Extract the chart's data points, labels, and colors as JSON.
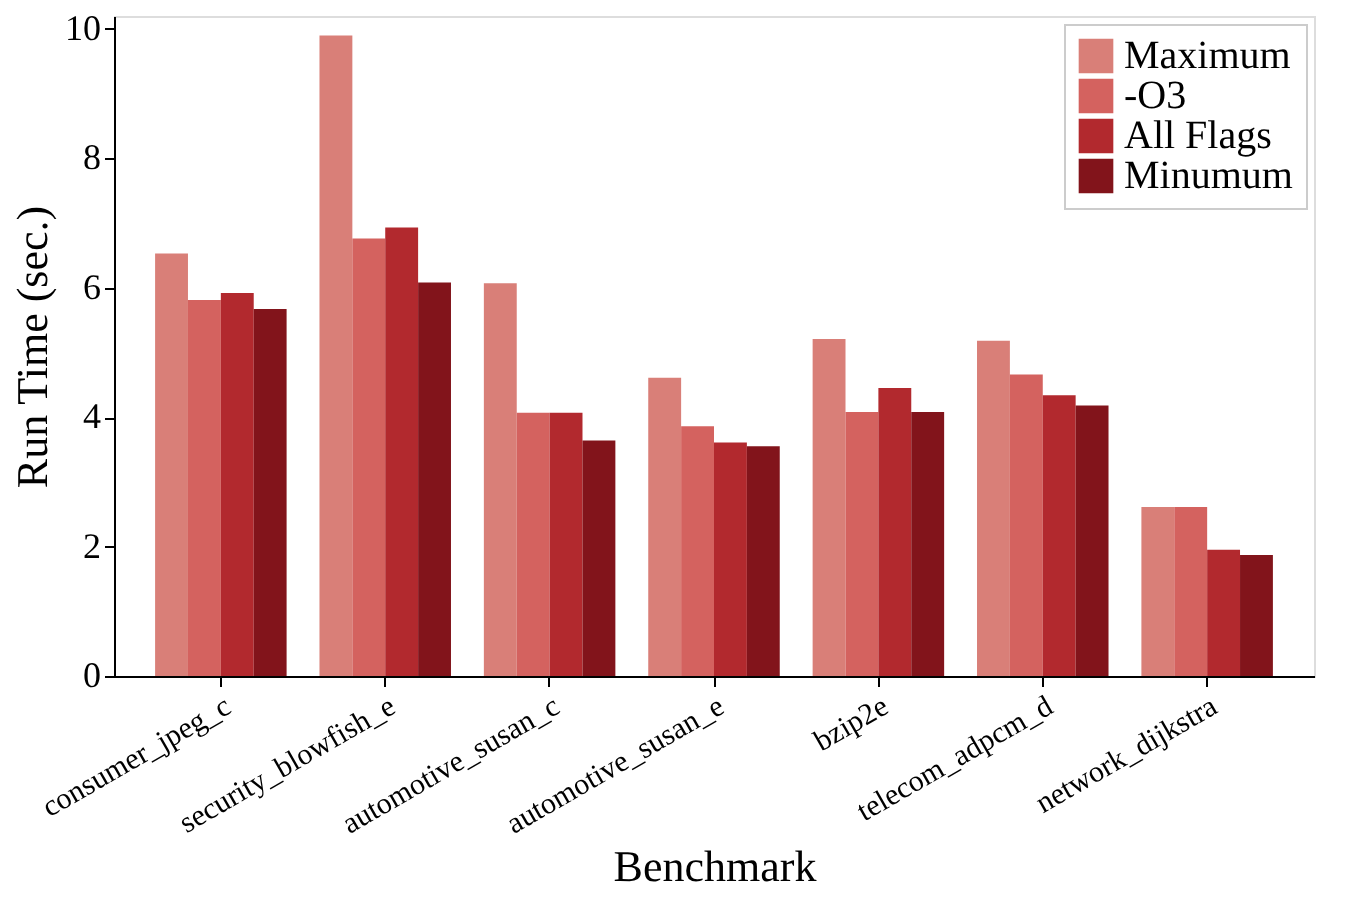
{
  "chart_data": {
    "type": "bar",
    "xlabel": "Benchmark",
    "ylabel": "Run Time (sec.)",
    "categories": [
      "consumer_jpeg_c",
      "security_blowfish_e",
      "automotive_susan_c",
      "automotive_susan_e",
      "bzip2e",
      "telecom_adpcm_d",
      "network_dijkstra"
    ],
    "series": [
      {
        "name": "Maximum",
        "color": "#d97f78",
        "values": [
          6.53,
          9.9,
          6.07,
          4.61,
          5.21,
          5.18,
          2.61
        ]
      },
      {
        "name": "-O3",
        "color": "#d4625f",
        "values": [
          5.81,
          6.76,
          4.07,
          3.86,
          4.08,
          4.66,
          2.61
        ]
      },
      {
        "name": "All Flags",
        "color": "#b2292e",
        "values": [
          5.92,
          6.93,
          4.07,
          3.61,
          4.45,
          4.34,
          1.95
        ]
      },
      {
        "name": "Minumum",
        "color": "#82141b",
        "values": [
          5.67,
          6.08,
          3.64,
          3.55,
          4.08,
          4.18,
          1.87
        ]
      }
    ],
    "ylim": [
      0,
      10.2
    ],
    "yticks": [
      0,
      2,
      4,
      6,
      8,
      10
    ],
    "grid": false,
    "legend": "top right"
  }
}
